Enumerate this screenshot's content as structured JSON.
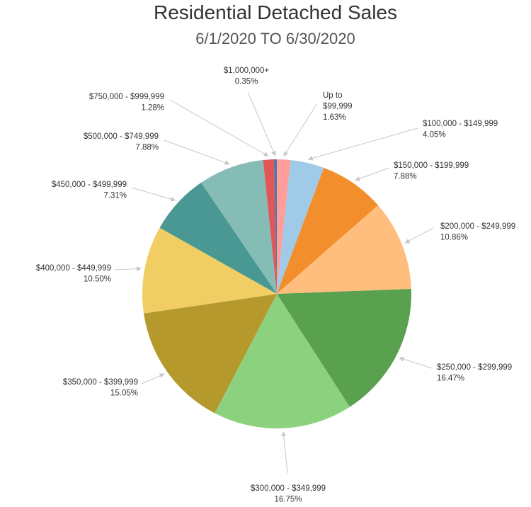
{
  "chart_data": {
    "type": "pie",
    "title": "Residential Detached Sales",
    "subtitle": "6/1/2020 TO 6/30/2020",
    "start": "12 o'clock, clockwise",
    "slices": [
      {
        "label": "Up to $99,999",
        "label_lines": [
          "Up to",
          "$99,999"
        ],
        "value": 1.63,
        "value_label": "1.63%",
        "color": "#FF9D9A"
      },
      {
        "label": "$100,000 - $149,999",
        "label_lines": [
          "$100,000 - $149,999"
        ],
        "value": 4.05,
        "value_label": "4.05%",
        "color": "#A0CBE8"
      },
      {
        "label": "$150,000 - $199,999",
        "label_lines": [
          "$150,000 - $199,999"
        ],
        "value": 7.88,
        "value_label": "7.88%",
        "color": "#F28E2B"
      },
      {
        "label": "$200,000 - $249,999",
        "label_lines": [
          "$200,000 - $249,999"
        ],
        "value": 10.86,
        "value_label": "10.86%",
        "color": "#FFBE7D"
      },
      {
        "label": "$250,000 - $299,999",
        "label_lines": [
          "$250,000 - $299,999"
        ],
        "value": 16.47,
        "value_label": "16.47%",
        "color": "#59A14F"
      },
      {
        "label": "$300,000 - $349,999",
        "label_lines": [
          "$300,000 - $349,999"
        ],
        "value": 16.75,
        "value_label": "16.75%",
        "color": "#8CD17D"
      },
      {
        "label": "$350,000 - $399,999",
        "label_lines": [
          "$350,000 - $399,999"
        ],
        "value": 15.05,
        "value_label": "15.05%",
        "color": "#B6992D"
      },
      {
        "label": "$400,000 - $449,999",
        "label_lines": [
          "$400,000 - $449,999"
        ],
        "value": 10.5,
        "value_label": "10.50%",
        "color": "#F1CE63"
      },
      {
        "label": "$450,000 - $499,999",
        "label_lines": [
          "$450,000 - $499,999"
        ],
        "value": 7.31,
        "value_label": "7.31%",
        "color": "#499894"
      },
      {
        "label": "$500,000 - $749,999",
        "label_lines": [
          "$500,000 - $749,999"
        ],
        "value": 7.88,
        "value_label": "7.88%",
        "color": "#86BCB6"
      },
      {
        "label": "$750,000 - $999,999",
        "label_lines": [
          "$750,000 - $999,999"
        ],
        "value": 1.28,
        "value_label": "1.28%",
        "color": "#E15759"
      },
      {
        "label": "$1,000,000+",
        "label_lines": [
          "$1,000,000+"
        ],
        "value": 0.35,
        "value_label": "0.35%",
        "color": "#4E79A7"
      }
    ]
  }
}
